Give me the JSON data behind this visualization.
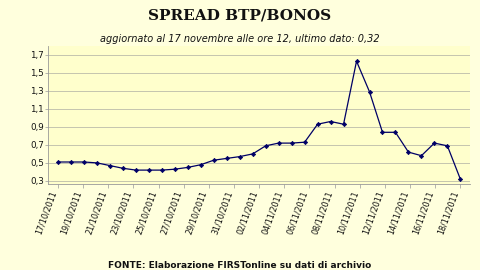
{
  "title": "SPREAD BTP/BONOS",
  "subtitle": "aggiornato al 17 novembre alle ore 12, ultimo dato: 0,32",
  "footnote": "FONTE: Elaborazione FIRSTonline su dati di archivio",
  "background_color": "#ffffdd",
  "plot_bg_color": "#ffffcc",
  "line_color": "#000066",
  "marker_color": "#000066",
  "yvalues": [
    0.51,
    0.51,
    0.51,
    0.5,
    0.47,
    0.44,
    0.42,
    0.42,
    0.42,
    0.43,
    0.45,
    0.48,
    0.53,
    0.55,
    0.57,
    0.6,
    0.69,
    0.72,
    0.72,
    0.73,
    0.93,
    0.96,
    0.93,
    1.63,
    1.29,
    0.84,
    0.84,
    0.62,
    0.58,
    0.72,
    0.69,
    0.32
  ],
  "xlabels": [
    "17/10/2011",
    "19/10/2011",
    "21/10/2011",
    "23/10/2011",
    "25/10/2011",
    "27/10/2011",
    "29/10/2011",
    "31/10/2011",
    "02/11/2011",
    "04/11/2011",
    "06/11/2011",
    "08/11/2011",
    "10/11/2011",
    "12/11/2011",
    "14/11/2011",
    "16/11/2011",
    "18/11/2011"
  ],
  "yticks": [
    0.3,
    0.5,
    0.7,
    0.9,
    1.1,
    1.3,
    1.5,
    1.7
  ],
  "ylim": [
    0.27,
    1.8
  ],
  "grid_color": "#bbbbaa",
  "title_fontsize": 11,
  "subtitle_fontsize": 7,
  "footnote_fontsize": 6.5,
  "tick_fontsize": 5.8
}
